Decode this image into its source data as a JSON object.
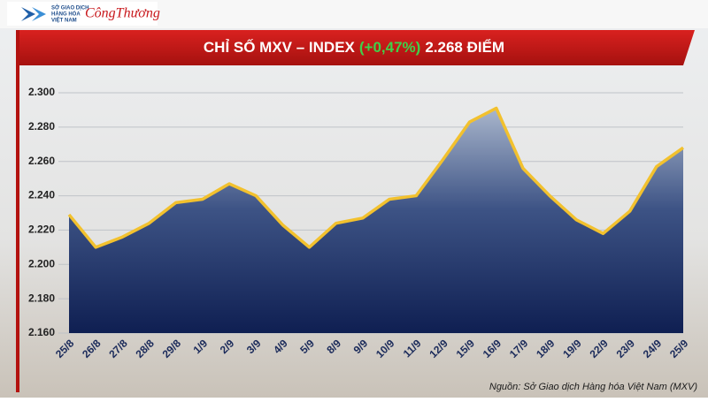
{
  "logo": {
    "lines": [
      "SỞ GIAO DỊCH",
      "HÀNG HÓA",
      "VIỆT NAM"
    ],
    "partner": "CôngThương"
  },
  "chart_data": {
    "type": "area",
    "title": "CHỈ SỐ MXV – INDEX",
    "title_change": "(+0,47%)",
    "title_value": "2.268 ĐIỂM",
    "source": "Nguồn: Sở Giao dịch Hàng hóa Việt Nam (MXV)",
    "categories": [
      "25/8",
      "26/8",
      "27/8",
      "28/8",
      "29/8",
      "1/9",
      "2/9",
      "3/9",
      "4/9",
      "5/9",
      "8/9",
      "9/9",
      "10/9",
      "11/9",
      "12/9",
      "15/9",
      "16/9",
      "17/9",
      "18/9",
      "19/9",
      "22/9",
      "23/9",
      "24/9",
      "25/9"
    ],
    "values": [
      2229,
      2210,
      2216,
      2224,
      2236,
      2238,
      2247,
      2240,
      2223,
      2210,
      2224,
      2227,
      2238,
      2240,
      2261,
      2283,
      2291,
      2256,
      2240,
      2226,
      2218,
      2231,
      2257,
      2268
    ],
    "color": "#f2c12e",
    "ylim": [
      2160,
      2300
    ],
    "yticks": [
      {
        "value": 2160,
        "label": "2.160"
      },
      {
        "value": 2180,
        "label": "2.180"
      },
      {
        "value": 2200,
        "label": "2.200"
      },
      {
        "value": 2220,
        "label": "2.220"
      },
      {
        "value": 2240,
        "label": "2.240"
      },
      {
        "value": 2260,
        "label": "2.260"
      },
      {
        "value": 2280,
        "label": "2.280"
      },
      {
        "value": 2300,
        "label": "2.300"
      }
    ],
    "grid": true
  }
}
